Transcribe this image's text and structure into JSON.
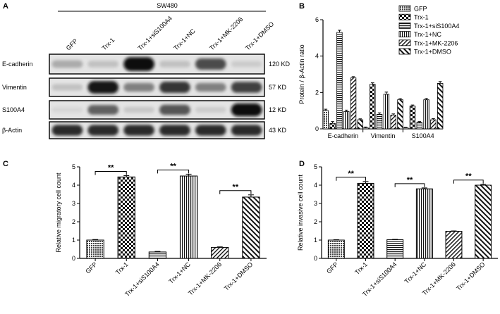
{
  "panels": {
    "a": {
      "letter": "A",
      "cell_line": "SW480",
      "lanes": [
        "GFP",
        "Trx-1",
        "Trx-1+siS100A4",
        "Trx-1+NC",
        "Trx-1+MK-2206",
        "Trx-1+DMSO"
      ],
      "blots": [
        {
          "protein": "E-cadherin",
          "size": "120 KD",
          "intensity": [
            0.25,
            0.15,
            1.0,
            0.15,
            0.7,
            0.1
          ]
        },
        {
          "protein": "Vimentin",
          "size": "57 KD",
          "intensity": [
            0.15,
            0.95,
            0.45,
            0.8,
            0.45,
            0.75
          ]
        },
        {
          "protein": "S100A4",
          "size": "12 KD",
          "intensity": [
            0.05,
            0.6,
            0.12,
            0.65,
            0.1,
            1.0
          ]
        },
        {
          "protein": "β-Actin",
          "size": "43 KD",
          "intensity": [
            0.85,
            0.85,
            0.85,
            0.85,
            0.85,
            0.85
          ]
        }
      ]
    },
    "b": {
      "letter": "B"
    },
    "c": {
      "letter": "C"
    },
    "d": {
      "letter": "D"
    }
  },
  "chart_data": [
    {
      "panel": "B",
      "type": "bar",
      "title": "",
      "xlabel": "",
      "ylabel": "Protein / β-Actin ratio",
      "ylim": [
        0,
        6
      ],
      "yticks": [
        0,
        2,
        4,
        6
      ],
      "categories": [
        "E-cadherin",
        "Vimentin",
        "S100A4"
      ],
      "legend_position": "top-right",
      "series": [
        {
          "name": "GFP",
          "values": [
            1.0,
            0.05,
            0.05
          ],
          "errors": [
            0.08,
            0.05,
            0.03
          ]
        },
        {
          "name": "Trx-1",
          "values": [
            0.3,
            2.45,
            1.25
          ],
          "errors": [
            0.1,
            0.08,
            0.06
          ]
        },
        {
          "name": "Trx-1+siS100A4",
          "values": [
            5.3,
            0.8,
            0.35
          ],
          "errors": [
            0.12,
            0.08,
            0.05
          ]
        },
        {
          "name": "Trx-1+NC",
          "values": [
            0.95,
            1.9,
            1.6
          ],
          "errors": [
            0.08,
            0.12,
            0.07
          ]
        },
        {
          "name": "Trx-1+MK-2206",
          "values": [
            2.8,
            0.75,
            0.5
          ],
          "errors": [
            0.07,
            0.07,
            0.06
          ]
        },
        {
          "name": "Trx-1+DMSO",
          "values": [
            0.5,
            1.6,
            2.5
          ],
          "errors": [
            0.05,
            0.06,
            0.1
          ]
        }
      ]
    },
    {
      "panel": "C",
      "type": "bar",
      "title": "",
      "xlabel": "",
      "ylabel": "Relative migratory cell count",
      "ylim": [
        0,
        5
      ],
      "yticks": [
        0,
        1,
        2,
        3,
        4,
        5
      ],
      "categories": [
        "GFP",
        "Trx-1",
        "Trx-1+siS100A4",
        "Trx-1+NC",
        "Trx-1+MK-2206",
        "Trx-1+DMSO"
      ],
      "values": [
        1.0,
        4.45,
        0.35,
        4.5,
        0.6,
        3.35
      ],
      "errors": [
        0.03,
        0.07,
        0.03,
        0.1,
        0.03,
        0.12
      ],
      "significance": [
        {
          "from": 0,
          "to": 1,
          "label": "**"
        },
        {
          "from": 2,
          "to": 3,
          "label": "**"
        },
        {
          "from": 4,
          "to": 5,
          "label": "**"
        }
      ]
    },
    {
      "panel": "D",
      "type": "bar",
      "title": "",
      "xlabel": "",
      "ylabel": "Relative invasive cell count",
      "ylim": [
        0,
        5
      ],
      "yticks": [
        0,
        1,
        2,
        3,
        4,
        5
      ],
      "categories": [
        "GFP",
        "Trx-1",
        "Trx-1+siS100A4",
        "Trx-1+NC",
        "Trx-1+MK-2206",
        "Trx-1+DMSO"
      ],
      "values": [
        1.0,
        4.1,
        1.02,
        3.8,
        1.48,
        4.0
      ],
      "errors": [
        0.02,
        0.1,
        0.02,
        0.05,
        0.02,
        0.05
      ],
      "significance": [
        {
          "from": 0,
          "to": 1,
          "label": "**"
        },
        {
          "from": 2,
          "to": 3,
          "label": "**"
        },
        {
          "from": 4,
          "to": 5,
          "label": "**"
        }
      ]
    }
  ]
}
